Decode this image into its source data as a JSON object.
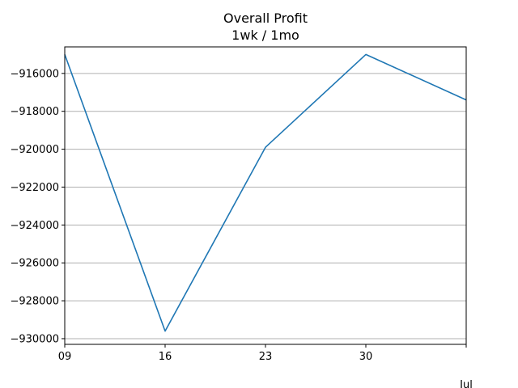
{
  "chart_data": {
    "type": "line",
    "title": "Overall Profit",
    "subtitle": "1wk / 1mo",
    "xlabel": "",
    "ylabel": "",
    "x_tick_labels": [
      "09",
      "16",
      "23",
      "30"
    ],
    "x_offset_label": "Jul",
    "ylim": [
      -930300,
      -914600
    ],
    "y_ticks": [
      -916000,
      -918000,
      -920000,
      -922000,
      -924000,
      -926000,
      -928000,
      -930000
    ],
    "y_tick_labels": [
      "−916000",
      "−918000",
      "−920000",
      "−922000",
      "−924000",
      "−926000",
      "−928000",
      "−930000"
    ],
    "grid": "horizontal",
    "series": [
      {
        "color": "#1f77b4",
        "x": [
          "Jul 09",
          "Jul 16",
          "Jul 23",
          "Jul 30",
          "Aug 06"
        ],
        "values": [
          -915000,
          -929600,
          -919900,
          -915000,
          -917400
        ]
      }
    ]
  }
}
